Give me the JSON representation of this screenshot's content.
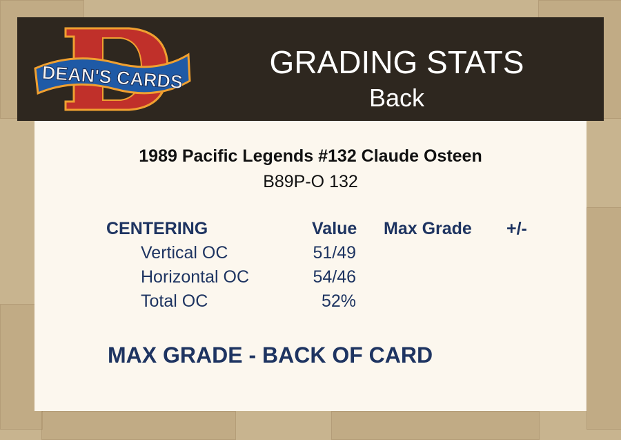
{
  "header": {
    "logo_text": "DEAN'S CARDS",
    "title": "GRADING STATS",
    "subtitle": "Back"
  },
  "card": {
    "name": "1989 Pacific Legends #132 Claude Osteen",
    "code": "B89P-O 132"
  },
  "table": {
    "section": "CENTERING",
    "columns": [
      "Value",
      "Max Grade",
      "+/-"
    ],
    "rows": [
      {
        "label": "Vertical OC",
        "value": "51/49"
      },
      {
        "label": "Horizontal OC",
        "value": "54/46"
      },
      {
        "label": "Total OC",
        "value": "52%"
      }
    ]
  },
  "footer": {
    "max_grade_label": "MAX GRADE - BACK OF CARD"
  },
  "colors": {
    "header_bg": "#2e271f",
    "panel_bg": "#fcf7ee",
    "text_navy": "#1e3461",
    "background": "#c8b48f"
  }
}
